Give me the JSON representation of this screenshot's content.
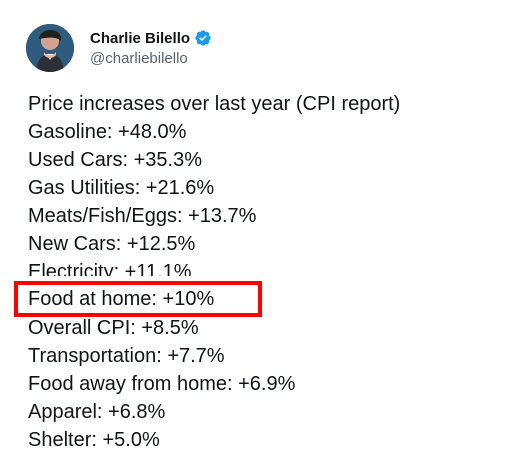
{
  "author": {
    "display_name": "Charlie Bilello",
    "handle": "@charliebilello",
    "verified_icon": "verified-badge-icon",
    "avatar_icon": "profile-avatar-icon"
  },
  "tweet": {
    "lines": [
      "Price increases over last year (CPI report)",
      "Gasoline: +48.0%",
      "Used Cars: +35.3%",
      "Gas Utilities: +21.6%",
      "Meats/Fish/Eggs: +13.7%",
      "New Cars: +12.5%",
      "Electricity: +11.1%",
      "Food at home: +10%",
      "Overall CPI: +8.5%",
      "Transportation: +7.7%",
      "Food away from home: +6.9%",
      "Apparel: +6.8%",
      "Shelter: +5.0%"
    ]
  },
  "colors": {
    "text": "#0f1419",
    "secondary_text": "#536471",
    "verified_blue": "#1d9bf0",
    "highlight_red": "#ff0000"
  }
}
